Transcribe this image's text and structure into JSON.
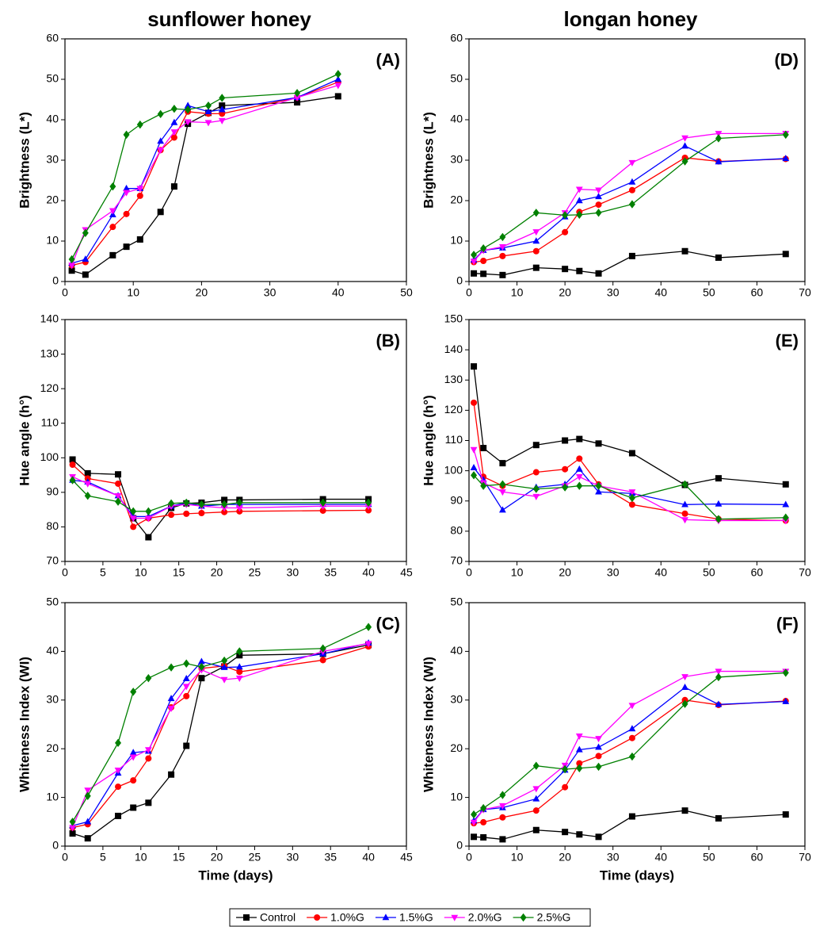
{
  "chart_data": [
    {
      "type": "line",
      "heading": "sunflower honey",
      "title": "(A)",
      "ylabel": "Brightness (L*)",
      "x": [
        1,
        3,
        7,
        9,
        11,
        14,
        16,
        18,
        21,
        23,
        34,
        40
      ],
      "xlim": [
        0,
        50
      ],
      "xticks": [
        0,
        10,
        20,
        30,
        40,
        50
      ],
      "ylim": [
        0,
        60
      ],
      "yticks": [
        0,
        10,
        20,
        30,
        40,
        50,
        60
      ],
      "series": [
        {
          "name": "Control",
          "color": "#000000",
          "marker": "square",
          "values": [
            2.7,
            1.7,
            6.5,
            8.6,
            10.4,
            17.2,
            23.5,
            39,
            41.7,
            43.5,
            44.3,
            45.8
          ]
        },
        {
          "name": "1.0%G",
          "color": "#ff0000",
          "marker": "circle",
          "values": [
            4,
            4.8,
            13.5,
            16.7,
            21.2,
            32.5,
            35.6,
            42,
            41.5,
            41.5,
            45.5,
            49.3
          ]
        },
        {
          "name": "1.5%G",
          "color": "#0000ff",
          "marker": "triangle-up",
          "values": [
            4.5,
            5.5,
            16.5,
            23,
            23,
            34.7,
            39.3,
            43.5,
            42,
            42.5,
            45.5,
            50
          ]
        },
        {
          "name": "2.0%G",
          "color": "#ff00ff",
          "marker": "triangle-down",
          "values": [
            4,
            12.8,
            17.5,
            22,
            23,
            32.5,
            37,
            39.5,
            39.3,
            39.8,
            45.5,
            48.5
          ]
        },
        {
          "name": "2.5%G",
          "color": "#008000",
          "marker": "diamond",
          "values": [
            5.5,
            12,
            23.5,
            36.3,
            38.8,
            41.4,
            42.7,
            42.5,
            43.5,
            45.4,
            46.6,
            51.3
          ]
        }
      ]
    },
    {
      "type": "line",
      "title": "(B)",
      "ylabel": "Hue angle (h°)",
      "x": [
        1,
        3,
        7,
        9,
        11,
        14,
        16,
        18,
        21,
        23,
        34,
        40
      ],
      "xlim": [
        0,
        45
      ],
      "xticks": [
        0,
        5,
        10,
        15,
        20,
        25,
        30,
        35,
        40,
        45
      ],
      "ylim": [
        70,
        140
      ],
      "yticks": [
        70,
        80,
        90,
        100,
        110,
        120,
        130,
        140
      ],
      "series": [
        {
          "name": "Control",
          "color": "#000000",
          "marker": "square",
          "values": [
            99.5,
            95.5,
            95.2,
            82.5,
            77,
            85.5,
            86.8,
            87,
            87.8,
            87.8,
            88,
            88
          ]
        },
        {
          "name": "1.0%G",
          "color": "#ff0000",
          "marker": "circle",
          "values": [
            98,
            94,
            92.5,
            80,
            82.5,
            83.5,
            83.8,
            84,
            84.3,
            84.5,
            84.7,
            84.8
          ]
        },
        {
          "name": "1.5%G",
          "color": "#0000ff",
          "marker": "triangle-up",
          "values": [
            93.5,
            93,
            89,
            83,
            83,
            86,
            87,
            86,
            86.5,
            86.5,
            86.5,
            86.5
          ]
        },
        {
          "name": "2.0%G",
          "color": "#ff00ff",
          "marker": "triangle-down",
          "values": [
            94.5,
            92.5,
            89,
            82.5,
            82.5,
            86,
            86.5,
            86,
            85.5,
            85.5,
            86,
            86
          ]
        },
        {
          "name": "2.5%G",
          "color": "#008000",
          "marker": "diamond",
          "values": [
            93.5,
            89,
            87.3,
            84.5,
            84.5,
            86.8,
            87,
            86.5,
            86.5,
            87,
            87,
            87
          ]
        }
      ]
    },
    {
      "type": "line",
      "title": "(C)",
      "ylabel": "Whiteness Index (WI)",
      "xlabel": "Time (days)",
      "x": [
        1,
        3,
        7,
        9,
        11,
        14,
        16,
        18,
        21,
        23,
        34,
        40
      ],
      "xlim": [
        0,
        45
      ],
      "xticks": [
        0,
        5,
        10,
        15,
        20,
        25,
        30,
        35,
        40,
        45
      ],
      "ylim": [
        0,
        50
      ],
      "yticks": [
        0,
        10,
        20,
        30,
        40,
        50
      ],
      "series": [
        {
          "name": "Control",
          "color": "#000000",
          "marker": "square",
          "values": [
            2.6,
            1.6,
            6.2,
            7.9,
            8.9,
            14.7,
            20.6,
            34.5,
            36.9,
            39.2,
            39.5,
            41.3
          ]
        },
        {
          "name": "1.0%G",
          "color": "#ff0000",
          "marker": "circle",
          "values": [
            3.8,
            4.5,
            12.2,
            13.5,
            18,
            28.5,
            30.8,
            36.5,
            37,
            35.8,
            38.2,
            41
          ]
        },
        {
          "name": "1.5%G",
          "color": "#0000ff",
          "marker": "triangle-up",
          "values": [
            4.2,
            5,
            15,
            19.2,
            19.5,
            30.3,
            34.4,
            37.9,
            36.7,
            36.8,
            39.5,
            41.7
          ]
        },
        {
          "name": "2.0%G",
          "color": "#ff00ff",
          "marker": "triangle-down",
          "values": [
            3.8,
            11.5,
            15.6,
            18.3,
            19.8,
            28.3,
            32.8,
            36.2,
            34.2,
            34.5,
            40,
            41.6
          ]
        },
        {
          "name": "2.5%G",
          "color": "#008000",
          "marker": "diamond",
          "values": [
            5,
            10.3,
            21.2,
            31.7,
            34.5,
            36.7,
            37.5,
            36.8,
            38.1,
            40,
            40.6,
            45
          ]
        }
      ]
    },
    {
      "type": "line",
      "heading": "longan honey",
      "title": "(D)",
      "ylabel": "Brightness (L*)",
      "x": [
        1,
        3,
        7,
        14,
        20,
        23,
        27,
        34,
        45,
        52,
        66
      ],
      "xlim": [
        0,
        70
      ],
      "xticks": [
        0,
        10,
        20,
        30,
        40,
        50,
        60,
        70
      ],
      "ylim": [
        0,
        60
      ],
      "yticks": [
        0,
        10,
        20,
        30,
        40,
        50,
        60
      ],
      "series": [
        {
          "name": "Control",
          "color": "#000000",
          "marker": "square",
          "values": [
            2,
            1.9,
            1.6,
            3.4,
            3.1,
            2.6,
            2,
            6.3,
            7.5,
            5.9,
            6.8
          ]
        },
        {
          "name": "1.0%G",
          "color": "#ff0000",
          "marker": "circle",
          "values": [
            4.8,
            5.1,
            6.3,
            7.5,
            12.2,
            17.2,
            19,
            22.6,
            30.6,
            29.7,
            30.3
          ]
        },
        {
          "name": "1.5%G",
          "color": "#0000ff",
          "marker": "triangle-up",
          "values": [
            5.3,
            7.7,
            8.3,
            10,
            16,
            20,
            21,
            24.6,
            33.5,
            29.6,
            30.4
          ]
        },
        {
          "name": "2.0%G",
          "color": "#ff00ff",
          "marker": "triangle-down",
          "values": [
            5,
            7.7,
            8.6,
            12.3,
            17,
            22.8,
            22.6,
            29.4,
            35.5,
            36.6,
            36.6
          ]
        },
        {
          "name": "2.5%G",
          "color": "#008000",
          "marker": "diamond",
          "values": [
            6.6,
            8.2,
            11,
            17,
            16.4,
            16.5,
            17,
            19.1,
            29.7,
            35.4,
            36.3
          ]
        }
      ]
    },
    {
      "type": "line",
      "title": "(E)",
      "ylabel": "Hue angle (h°)",
      "x": [
        1,
        3,
        7,
        14,
        20,
        23,
        27,
        34,
        45,
        52,
        66
      ],
      "xlim": [
        0,
        70
      ],
      "xticks": [
        0,
        10,
        20,
        30,
        40,
        50,
        60,
        70
      ],
      "ylim": [
        70,
        150
      ],
      "yticks": [
        70,
        80,
        90,
        100,
        110,
        120,
        130,
        140,
        150
      ],
      "series": [
        {
          "name": "Control",
          "color": "#000000",
          "marker": "square",
          "values": [
            134.5,
            107.5,
            102.5,
            108.5,
            110,
            110.5,
            109,
            105.8,
            95.3,
            97.5,
            95.5
          ]
        },
        {
          "name": "1.0%G",
          "color": "#ff0000",
          "marker": "circle",
          "values": [
            122.5,
            98,
            95,
            99.5,
            100.5,
            104,
            95.5,
            88.8,
            85.8,
            84,
            83.5
          ]
        },
        {
          "name": "1.5%G",
          "color": "#0000ff",
          "marker": "triangle-up",
          "values": [
            101,
            97,
            87,
            94.5,
            95.5,
            100.5,
            93,
            92.5,
            88.8,
            89,
            88.8
          ]
        },
        {
          "name": "2.0%G",
          "color": "#ff00ff",
          "marker": "triangle-down",
          "values": [
            107,
            96,
            93,
            91.5,
            95,
            98,
            95,
            93,
            83.8,
            83.5,
            83.5
          ]
        },
        {
          "name": "2.5%G",
          "color": "#008000",
          "marker": "diamond",
          "values": [
            98.5,
            95,
            95.5,
            94,
            94.5,
            95,
            95,
            91,
            95.5,
            84,
            84.5
          ]
        }
      ]
    },
    {
      "type": "line",
      "title": "(F)",
      "ylabel": "Whiteness Index (WI)",
      "xlabel": "Time (days)",
      "x": [
        1,
        3,
        7,
        14,
        20,
        23,
        27,
        34,
        45,
        52,
        66
      ],
      "xlim": [
        0,
        70
      ],
      "xticks": [
        0,
        10,
        20,
        30,
        40,
        50,
        60,
        70
      ],
      "ylim": [
        0,
        50
      ],
      "yticks": [
        0,
        10,
        20,
        30,
        40,
        50
      ],
      "series": [
        {
          "name": "Control",
          "color": "#000000",
          "marker": "square",
          "values": [
            1.9,
            1.8,
            1.4,
            3.3,
            2.9,
            2.4,
            1.9,
            6.1,
            7.3,
            5.7,
            6.5
          ]
        },
        {
          "name": "1.0%G",
          "color": "#ff0000",
          "marker": "circle",
          "values": [
            4.7,
            4.9,
            5.9,
            7.3,
            12.1,
            17,
            18.5,
            22.2,
            30,
            29,
            29.8
          ]
        },
        {
          "name": "1.5%G",
          "color": "#0000ff",
          "marker": "triangle-up",
          "values": [
            5.2,
            7.5,
            7.9,
            9.7,
            15.6,
            19.8,
            20.3,
            24.1,
            32.6,
            29.1,
            29.7
          ]
        },
        {
          "name": "2.0%G",
          "color": "#ff00ff",
          "marker": "triangle-down",
          "values": [
            4.9,
            7.5,
            8.3,
            11.8,
            16.6,
            22.6,
            22.1,
            28.9,
            34.8,
            35.9,
            35.9
          ]
        },
        {
          "name": "2.5%G",
          "color": "#008000",
          "marker": "diamond",
          "values": [
            6.5,
            7.8,
            10.5,
            16.5,
            15.8,
            16,
            16.3,
            18.4,
            29.2,
            34.7,
            35.6
          ]
        }
      ]
    }
  ]
}
